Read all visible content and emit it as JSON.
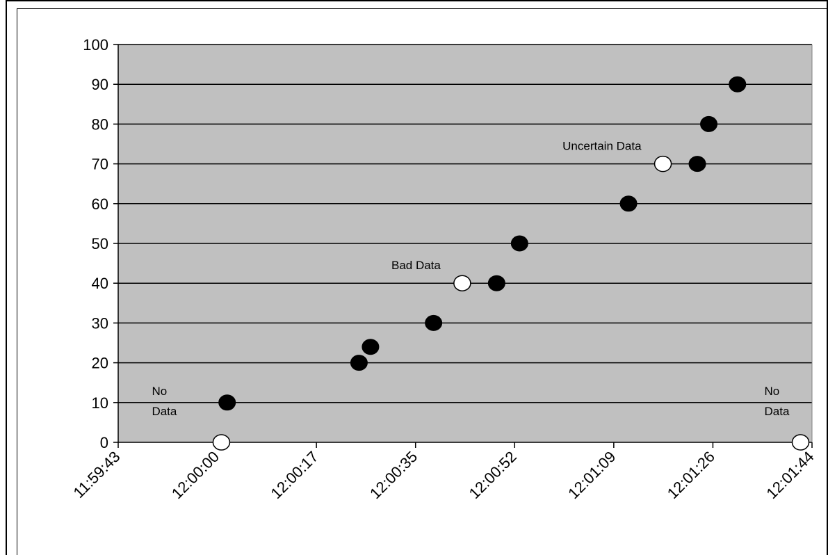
{
  "chart_data": {
    "type": "scatter",
    "title": "",
    "xlabel": "",
    "ylabel": "",
    "ylim": [
      0,
      100
    ],
    "yticks": [
      "0",
      "10",
      "20",
      "30",
      "40",
      "50",
      "60",
      "70",
      "80",
      "90",
      "100"
    ],
    "xticks": [
      "11:59:43",
      "12:00:00",
      "12:00:17",
      "12:00:35",
      "12:00:52",
      "12:01:09",
      "12:01:26",
      "12:01:44"
    ],
    "xlim": [
      "11:59:43",
      "12:01:44"
    ],
    "grid": "horizontal",
    "background": "#c0c0c0",
    "series": [
      {
        "color": "#000000",
        "marker": "filled-circle",
        "points": [
          {
            "x": "12:00:02",
            "y": 10
          },
          {
            "x": "12:00:25",
            "y": 20
          },
          {
            "x": "12:00:27",
            "y": 24
          },
          {
            "x": "12:00:38",
            "y": 30
          },
          {
            "x": "12:00:49",
            "y": 40
          },
          {
            "x": "12:00:53",
            "y": 50
          },
          {
            "x": "12:01:12",
            "y": 60
          },
          {
            "x": "12:01:24",
            "y": 70
          },
          {
            "x": "12:01:26",
            "y": 80
          },
          {
            "x": "12:01:31",
            "y": 90
          }
        ]
      },
      {
        "color": "#ffffff",
        "marker": "hollow-circle",
        "points": [
          {
            "x": "12:00:01",
            "y": 0,
            "label_lines": [
              "No",
              "Data"
            ]
          },
          {
            "x": "12:00:43",
            "y": 40,
            "label_lines": [
              "Bad Data"
            ]
          },
          {
            "x": "12:01:18",
            "y": 70,
            "label_lines": [
              "Uncertain Data"
            ]
          },
          {
            "x": "12:01:42",
            "y": 0,
            "label_lines": [
              "No",
              "Data"
            ]
          }
        ]
      }
    ]
  }
}
